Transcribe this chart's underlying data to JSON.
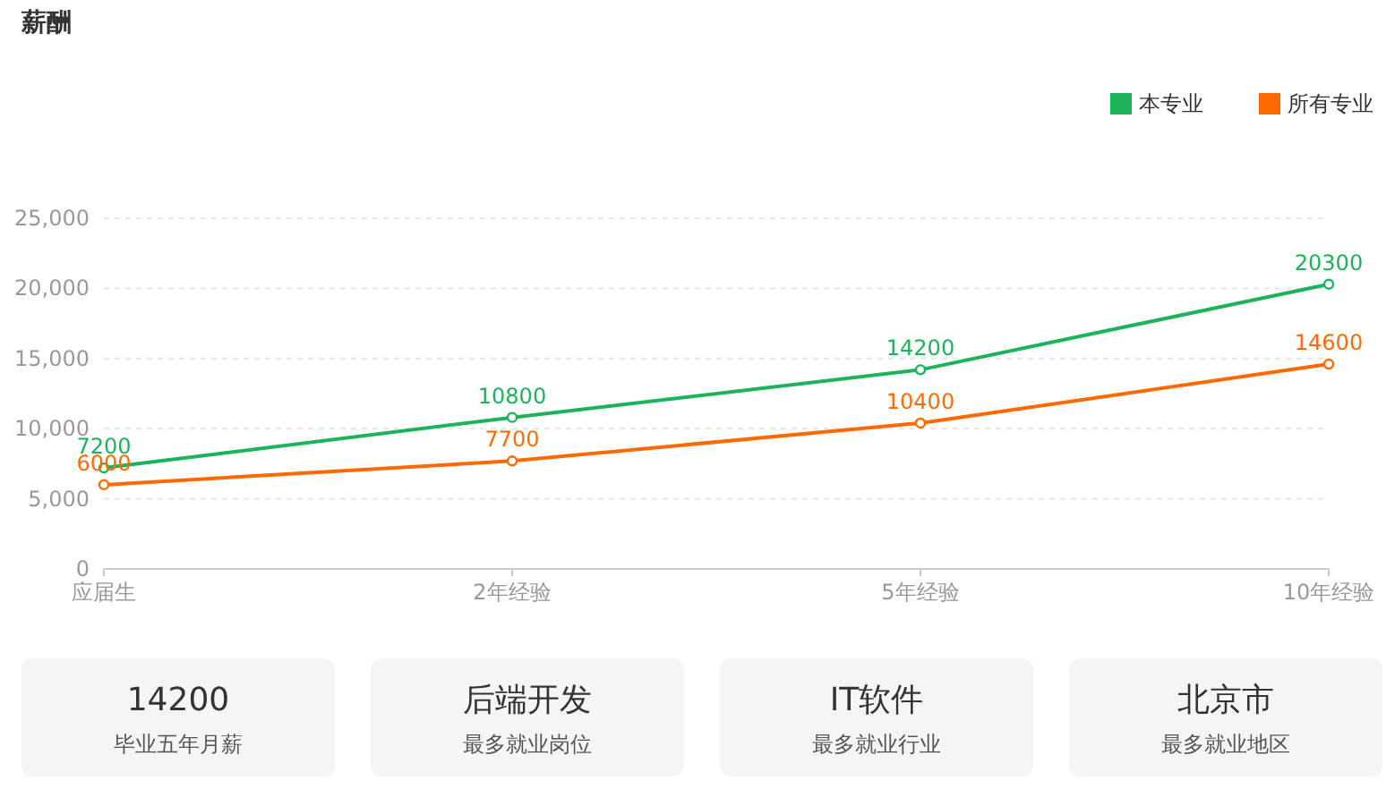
{
  "chart_data": [
    {
      "type": "line",
      "title": "薪酬",
      "categories": [
        "应届生",
        "2年经验",
        "5年经验",
        "10年经验"
      ],
      "series": [
        {
          "name": "本专业",
          "color": "#1db35a",
          "values": [
            7200,
            10800,
            14200,
            20300
          ]
        },
        {
          "name": "所有专业",
          "color": "#ff6a00",
          "values": [
            6000,
            7700,
            10400,
            14600
          ]
        }
      ],
      "ylim": [
        0,
        25000
      ],
      "yticks": [
        {
          "value": 0,
          "label": "0"
        },
        {
          "value": 5000,
          "label": "5,000"
        },
        {
          "value": 10000,
          "label": "10,000"
        },
        {
          "value": 15000,
          "label": "15,000"
        },
        {
          "value": 20000,
          "label": "20,000"
        },
        {
          "value": 25000,
          "label": "25,000"
        }
      ],
      "grid": "y",
      "legend": "top right",
      "marker": "circle",
      "data_labels": true
    },
    {
      "type": "other",
      "annotations": [
        "14200",
        "毕业五年月薪",
        "后端开发",
        "最多就业岗位",
        "IT软件",
        "最多就业行业",
        "北京市",
        "最多就业地区"
      ]
    }
  ]
}
